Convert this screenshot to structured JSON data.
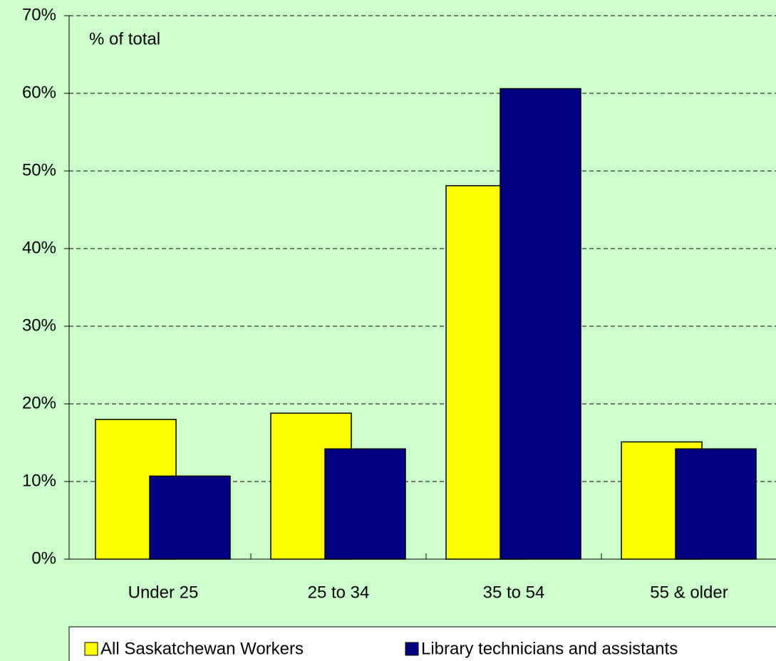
{
  "chart_data": {
    "type": "bar",
    "annotation": "% of total",
    "categories": [
      "Under 25",
      "25 to 34",
      "35 to 54",
      "55 & older"
    ],
    "series": [
      {
        "name": "All Saskatchewan Workers",
        "color": "#ffff00",
        "values": [
          18.0,
          18.8,
          48.1,
          15.1
        ]
      },
      {
        "name": "Library technicians and assistants",
        "color": "#000080",
        "values": [
          10.7,
          14.2,
          60.6,
          14.2
        ]
      }
    ],
    "ylim": [
      0,
      70
    ],
    "yticks": [
      {
        "value": 0,
        "label": "0%"
      },
      {
        "value": 10,
        "label": "10%"
      },
      {
        "value": 20,
        "label": "20%"
      },
      {
        "value": 30,
        "label": "30%"
      },
      {
        "value": 40,
        "label": "40%"
      },
      {
        "value": 50,
        "label": "50%"
      },
      {
        "value": 60,
        "label": "60%"
      },
      {
        "value": 70,
        "label": "70%"
      }
    ],
    "grid": true,
    "legend": "bottom"
  }
}
